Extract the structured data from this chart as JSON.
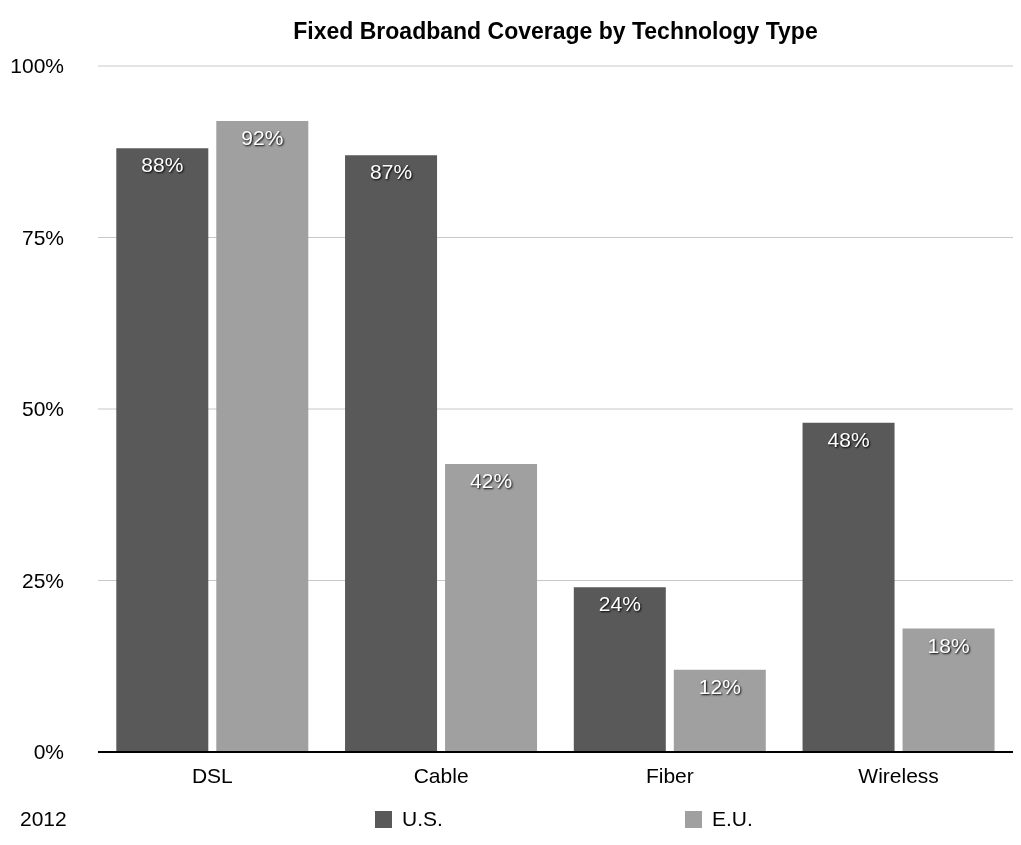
{
  "chart_data": {
    "type": "bar",
    "title": "Fixed Broadband Coverage by Technology Type",
    "categories": [
      "DSL",
      "Cable",
      "Fiber",
      "Wireless"
    ],
    "series": [
      {
        "name": "U.S.",
        "color": "#595959",
        "values": [
          88,
          87,
          24,
          48
        ],
        "value_labels": [
          "88%",
          "87%",
          "24%",
          "48%"
        ]
      },
      {
        "name": "E.U.",
        "color": "#a0a0a0",
        "values": [
          92,
          42,
          12,
          18
        ],
        "value_labels": [
          "92%",
          "42%",
          "12%",
          "18%"
        ]
      }
    ],
    "ylim": [
      0,
      100
    ],
    "yticks": [
      {
        "value": 0,
        "label": "0%"
      },
      {
        "value": 25,
        "label": "25%"
      },
      {
        "value": 50,
        "label": "50%"
      },
      {
        "value": 75,
        "label": "75%"
      },
      {
        "value": 100,
        "label": "100%"
      }
    ],
    "grid": "y",
    "legend": "bottom",
    "annotations": [
      "2012"
    ]
  }
}
